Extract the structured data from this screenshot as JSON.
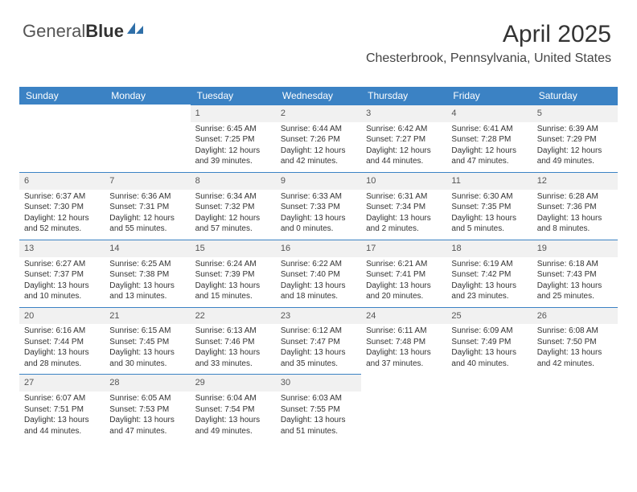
{
  "logo": {
    "word1": "General",
    "word2": "Blue"
  },
  "title": "April 2025",
  "location": "Chesterbrook, Pennsylvania, United States",
  "colors": {
    "header_bg": "#3b82c4",
    "header_text": "#ffffff",
    "daynum_bg": "#f1f1f1",
    "daynum_border": "#3b82c4",
    "page_bg": "#ffffff",
    "text": "#333333"
  },
  "day_headers": [
    "Sunday",
    "Monday",
    "Tuesday",
    "Wednesday",
    "Thursday",
    "Friday",
    "Saturday"
  ],
  "weeks": [
    [
      null,
      null,
      {
        "n": "1",
        "sunrise": "6:45 AM",
        "sunset": "7:25 PM",
        "daylight": "12 hours and 39 minutes."
      },
      {
        "n": "2",
        "sunrise": "6:44 AM",
        "sunset": "7:26 PM",
        "daylight": "12 hours and 42 minutes."
      },
      {
        "n": "3",
        "sunrise": "6:42 AM",
        "sunset": "7:27 PM",
        "daylight": "12 hours and 44 minutes."
      },
      {
        "n": "4",
        "sunrise": "6:41 AM",
        "sunset": "7:28 PM",
        "daylight": "12 hours and 47 minutes."
      },
      {
        "n": "5",
        "sunrise": "6:39 AM",
        "sunset": "7:29 PM",
        "daylight": "12 hours and 49 minutes."
      }
    ],
    [
      {
        "n": "6",
        "sunrise": "6:37 AM",
        "sunset": "7:30 PM",
        "daylight": "12 hours and 52 minutes."
      },
      {
        "n": "7",
        "sunrise": "6:36 AM",
        "sunset": "7:31 PM",
        "daylight": "12 hours and 55 minutes."
      },
      {
        "n": "8",
        "sunrise": "6:34 AM",
        "sunset": "7:32 PM",
        "daylight": "12 hours and 57 minutes."
      },
      {
        "n": "9",
        "sunrise": "6:33 AM",
        "sunset": "7:33 PM",
        "daylight": "13 hours and 0 minutes."
      },
      {
        "n": "10",
        "sunrise": "6:31 AM",
        "sunset": "7:34 PM",
        "daylight": "13 hours and 2 minutes."
      },
      {
        "n": "11",
        "sunrise": "6:30 AM",
        "sunset": "7:35 PM",
        "daylight": "13 hours and 5 minutes."
      },
      {
        "n": "12",
        "sunrise": "6:28 AM",
        "sunset": "7:36 PM",
        "daylight": "13 hours and 8 minutes."
      }
    ],
    [
      {
        "n": "13",
        "sunrise": "6:27 AM",
        "sunset": "7:37 PM",
        "daylight": "13 hours and 10 minutes."
      },
      {
        "n": "14",
        "sunrise": "6:25 AM",
        "sunset": "7:38 PM",
        "daylight": "13 hours and 13 minutes."
      },
      {
        "n": "15",
        "sunrise": "6:24 AM",
        "sunset": "7:39 PM",
        "daylight": "13 hours and 15 minutes."
      },
      {
        "n": "16",
        "sunrise": "6:22 AM",
        "sunset": "7:40 PM",
        "daylight": "13 hours and 18 minutes."
      },
      {
        "n": "17",
        "sunrise": "6:21 AM",
        "sunset": "7:41 PM",
        "daylight": "13 hours and 20 minutes."
      },
      {
        "n": "18",
        "sunrise": "6:19 AM",
        "sunset": "7:42 PM",
        "daylight": "13 hours and 23 minutes."
      },
      {
        "n": "19",
        "sunrise": "6:18 AM",
        "sunset": "7:43 PM",
        "daylight": "13 hours and 25 minutes."
      }
    ],
    [
      {
        "n": "20",
        "sunrise": "6:16 AM",
        "sunset": "7:44 PM",
        "daylight": "13 hours and 28 minutes."
      },
      {
        "n": "21",
        "sunrise": "6:15 AM",
        "sunset": "7:45 PM",
        "daylight": "13 hours and 30 minutes."
      },
      {
        "n": "22",
        "sunrise": "6:13 AM",
        "sunset": "7:46 PM",
        "daylight": "13 hours and 33 minutes."
      },
      {
        "n": "23",
        "sunrise": "6:12 AM",
        "sunset": "7:47 PM",
        "daylight": "13 hours and 35 minutes."
      },
      {
        "n": "24",
        "sunrise": "6:11 AM",
        "sunset": "7:48 PM",
        "daylight": "13 hours and 37 minutes."
      },
      {
        "n": "25",
        "sunrise": "6:09 AM",
        "sunset": "7:49 PM",
        "daylight": "13 hours and 40 minutes."
      },
      {
        "n": "26",
        "sunrise": "6:08 AM",
        "sunset": "7:50 PM",
        "daylight": "13 hours and 42 minutes."
      }
    ],
    [
      {
        "n": "27",
        "sunrise": "6:07 AM",
        "sunset": "7:51 PM",
        "daylight": "13 hours and 44 minutes."
      },
      {
        "n": "28",
        "sunrise": "6:05 AM",
        "sunset": "7:53 PM",
        "daylight": "13 hours and 47 minutes."
      },
      {
        "n": "29",
        "sunrise": "6:04 AM",
        "sunset": "7:54 PM",
        "daylight": "13 hours and 49 minutes."
      },
      {
        "n": "30",
        "sunrise": "6:03 AM",
        "sunset": "7:55 PM",
        "daylight": "13 hours and 51 minutes."
      },
      null,
      null,
      null
    ]
  ]
}
